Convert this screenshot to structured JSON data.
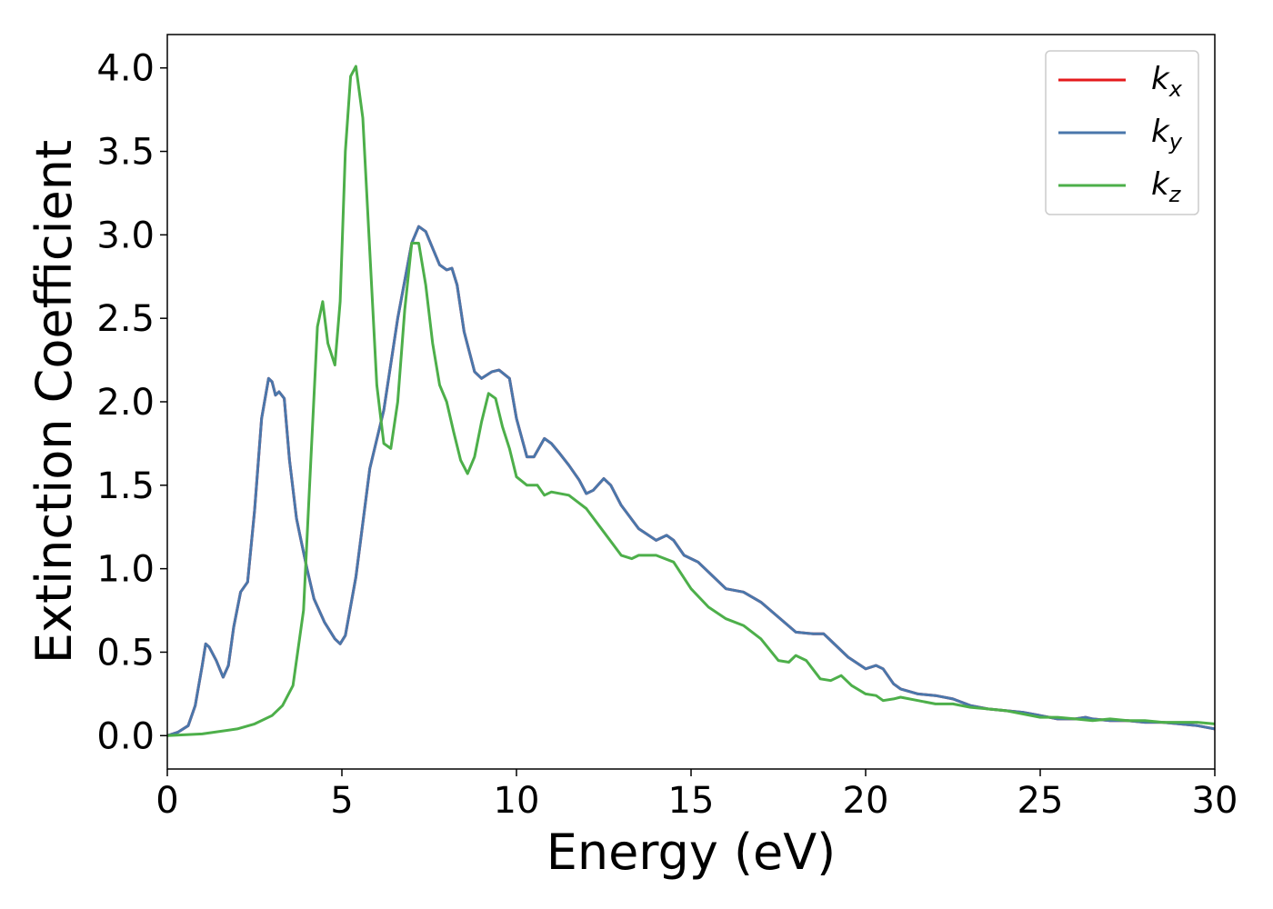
{
  "chart_data": {
    "type": "line",
    "title": "",
    "xlabel": "Energy (eV)",
    "ylabel": "Extinction Coefficient",
    "xlim": [
      0,
      30
    ],
    "ylim": [
      -0.2,
      4.2
    ],
    "xticks": [
      0,
      5,
      10,
      15,
      20,
      25,
      30
    ],
    "xtick_labels": [
      "0",
      "5",
      "10",
      "15",
      "20",
      "25",
      "30"
    ],
    "yticks": [
      0.0,
      0.5,
      1.0,
      1.5,
      2.0,
      2.5,
      3.0,
      3.5,
      4.0
    ],
    "ytick_labels": [
      "0.0",
      "0.5",
      "1.0",
      "1.5",
      "2.0",
      "2.5",
      "3.0",
      "3.5",
      "4.0"
    ],
    "grid": false,
    "legend_position": "top-right",
    "series": [
      {
        "name": "k_x",
        "label_base": "k",
        "label_sub": "x",
        "color": "#e41a1c",
        "x": [
          0,
          0.3,
          0.6,
          0.8,
          1.0,
          1.1,
          1.2,
          1.4,
          1.6,
          1.75,
          1.9,
          2.1,
          2.3,
          2.5,
          2.7,
          2.9,
          3.0,
          3.1,
          3.2,
          3.35,
          3.5,
          3.7,
          3.8,
          4.0,
          4.2,
          4.5,
          4.8,
          4.95,
          5.1,
          5.4,
          5.8,
          6.2,
          6.6,
          7.0,
          7.2,
          7.4,
          7.6,
          7.8,
          8.0,
          8.15,
          8.3,
          8.5,
          8.8,
          9.0,
          9.3,
          9.5,
          9.8,
          10.0,
          10.3,
          10.5,
          10.8,
          11.0,
          11.2,
          11.5,
          11.8,
          12.0,
          12.2,
          12.5,
          12.7,
          13.0,
          13.5,
          14.0,
          14.3,
          14.5,
          14.8,
          15.2,
          15.5,
          16.0,
          16.5,
          17.0,
          17.5,
          18.0,
          18.5,
          18.8,
          19.0,
          19.5,
          20.0,
          20.3,
          20.5,
          20.8,
          21.0,
          21.5,
          22.0,
          22.5,
          23.0,
          23.5,
          24.0,
          24.5,
          25.0,
          25.5,
          26.0,
          26.3,
          26.5,
          27.0,
          27.5,
          28.0,
          28.5,
          29.0,
          29.5,
          30.0
        ],
        "y": [
          0.0,
          0.02,
          0.06,
          0.18,
          0.42,
          0.55,
          0.53,
          0.45,
          0.35,
          0.42,
          0.65,
          0.86,
          0.92,
          1.35,
          1.9,
          2.14,
          2.12,
          2.04,
          2.06,
          2.02,
          1.65,
          1.3,
          1.2,
          1.0,
          0.82,
          0.68,
          0.58,
          0.55,
          0.6,
          0.95,
          1.6,
          1.95,
          2.5,
          2.95,
          3.05,
          3.02,
          2.92,
          2.82,
          2.79,
          2.8,
          2.7,
          2.42,
          2.18,
          2.14,
          2.18,
          2.19,
          2.14,
          1.9,
          1.67,
          1.67,
          1.78,
          1.75,
          1.7,
          1.62,
          1.53,
          1.45,
          1.47,
          1.54,
          1.5,
          1.38,
          1.24,
          1.17,
          1.2,
          1.17,
          1.08,
          1.04,
          0.98,
          0.88,
          0.86,
          0.8,
          0.71,
          0.62,
          0.61,
          0.61,
          0.57,
          0.47,
          0.4,
          0.42,
          0.4,
          0.31,
          0.28,
          0.25,
          0.24,
          0.22,
          0.18,
          0.16,
          0.15,
          0.14,
          0.12,
          0.1,
          0.1,
          0.11,
          0.1,
          0.09,
          0.09,
          0.08,
          0.08,
          0.07,
          0.06,
          0.04
        ]
      },
      {
        "name": "k_y",
        "label_base": "k",
        "label_sub": "y",
        "color": "#4a77ab",
        "x": [
          0,
          0.3,
          0.6,
          0.8,
          1.0,
          1.1,
          1.2,
          1.4,
          1.6,
          1.75,
          1.9,
          2.1,
          2.3,
          2.5,
          2.7,
          2.9,
          3.0,
          3.1,
          3.2,
          3.35,
          3.5,
          3.7,
          3.8,
          4.0,
          4.2,
          4.5,
          4.8,
          4.95,
          5.1,
          5.4,
          5.8,
          6.2,
          6.6,
          7.0,
          7.2,
          7.4,
          7.6,
          7.8,
          8.0,
          8.15,
          8.3,
          8.5,
          8.8,
          9.0,
          9.3,
          9.5,
          9.8,
          10.0,
          10.3,
          10.5,
          10.8,
          11.0,
          11.2,
          11.5,
          11.8,
          12.0,
          12.2,
          12.5,
          12.7,
          13.0,
          13.5,
          14.0,
          14.3,
          14.5,
          14.8,
          15.2,
          15.5,
          16.0,
          16.5,
          17.0,
          17.5,
          18.0,
          18.5,
          18.8,
          19.0,
          19.5,
          20.0,
          20.3,
          20.5,
          20.8,
          21.0,
          21.5,
          22.0,
          22.5,
          23.0,
          23.5,
          24.0,
          24.5,
          25.0,
          25.5,
          26.0,
          26.3,
          26.5,
          27.0,
          27.5,
          28.0,
          28.5,
          29.0,
          29.5,
          30.0
        ],
        "y": [
          0.0,
          0.02,
          0.06,
          0.18,
          0.42,
          0.55,
          0.53,
          0.45,
          0.35,
          0.42,
          0.65,
          0.86,
          0.92,
          1.35,
          1.9,
          2.14,
          2.12,
          2.04,
          2.06,
          2.02,
          1.65,
          1.3,
          1.2,
          1.0,
          0.82,
          0.68,
          0.58,
          0.55,
          0.6,
          0.95,
          1.6,
          1.95,
          2.5,
          2.95,
          3.05,
          3.02,
          2.92,
          2.82,
          2.79,
          2.8,
          2.7,
          2.42,
          2.18,
          2.14,
          2.18,
          2.19,
          2.14,
          1.9,
          1.67,
          1.67,
          1.78,
          1.75,
          1.7,
          1.62,
          1.53,
          1.45,
          1.47,
          1.54,
          1.5,
          1.38,
          1.24,
          1.17,
          1.2,
          1.17,
          1.08,
          1.04,
          0.98,
          0.88,
          0.86,
          0.8,
          0.71,
          0.62,
          0.61,
          0.61,
          0.57,
          0.47,
          0.4,
          0.42,
          0.4,
          0.31,
          0.28,
          0.25,
          0.24,
          0.22,
          0.18,
          0.16,
          0.15,
          0.14,
          0.12,
          0.1,
          0.1,
          0.11,
          0.1,
          0.09,
          0.09,
          0.08,
          0.08,
          0.07,
          0.06,
          0.04
        ]
      },
      {
        "name": "k_z",
        "label_base": "k",
        "label_sub": "z",
        "color": "#4daf4a",
        "x": [
          0,
          1.0,
          2.0,
          2.5,
          3.0,
          3.3,
          3.6,
          3.9,
          4.1,
          4.3,
          4.45,
          4.6,
          4.8,
          4.95,
          5.1,
          5.25,
          5.4,
          5.6,
          5.8,
          6.0,
          6.2,
          6.4,
          6.6,
          6.8,
          7.0,
          7.2,
          7.4,
          7.6,
          7.8,
          8.0,
          8.2,
          8.4,
          8.6,
          8.8,
          9.0,
          9.2,
          9.4,
          9.6,
          9.8,
          10.0,
          10.3,
          10.6,
          10.8,
          11.0,
          11.5,
          12.0,
          12.5,
          13.0,
          13.3,
          13.5,
          14.0,
          14.5,
          15.0,
          15.5,
          16.0,
          16.5,
          17.0,
          17.5,
          17.8,
          18.0,
          18.3,
          18.7,
          19.0,
          19.3,
          19.6,
          20.0,
          20.3,
          20.5,
          20.8,
          21.0,
          21.5,
          22.0,
          22.5,
          23.0,
          23.5,
          24.0,
          24.5,
          25.0,
          25.5,
          26.0,
          26.5,
          27.0,
          27.5,
          28.0,
          28.5,
          29.0,
          29.5,
          30.0
        ],
        "y": [
          0.0,
          0.01,
          0.04,
          0.07,
          0.12,
          0.18,
          0.3,
          0.75,
          1.6,
          2.45,
          2.6,
          2.35,
          2.22,
          2.6,
          3.5,
          3.95,
          4.01,
          3.7,
          2.9,
          2.1,
          1.75,
          1.72,
          2.0,
          2.55,
          2.95,
          2.95,
          2.7,
          2.35,
          2.1,
          2.0,
          1.82,
          1.65,
          1.57,
          1.67,
          1.88,
          2.05,
          2.02,
          1.85,
          1.72,
          1.55,
          1.5,
          1.5,
          1.44,
          1.46,
          1.44,
          1.36,
          1.22,
          1.08,
          1.06,
          1.08,
          1.08,
          1.04,
          0.88,
          0.77,
          0.7,
          0.66,
          0.58,
          0.45,
          0.44,
          0.48,
          0.45,
          0.34,
          0.33,
          0.36,
          0.3,
          0.25,
          0.24,
          0.21,
          0.22,
          0.23,
          0.21,
          0.19,
          0.19,
          0.17,
          0.16,
          0.15,
          0.13,
          0.11,
          0.11,
          0.1,
          0.09,
          0.1,
          0.09,
          0.09,
          0.08,
          0.08,
          0.08,
          0.07
        ]
      }
    ]
  }
}
